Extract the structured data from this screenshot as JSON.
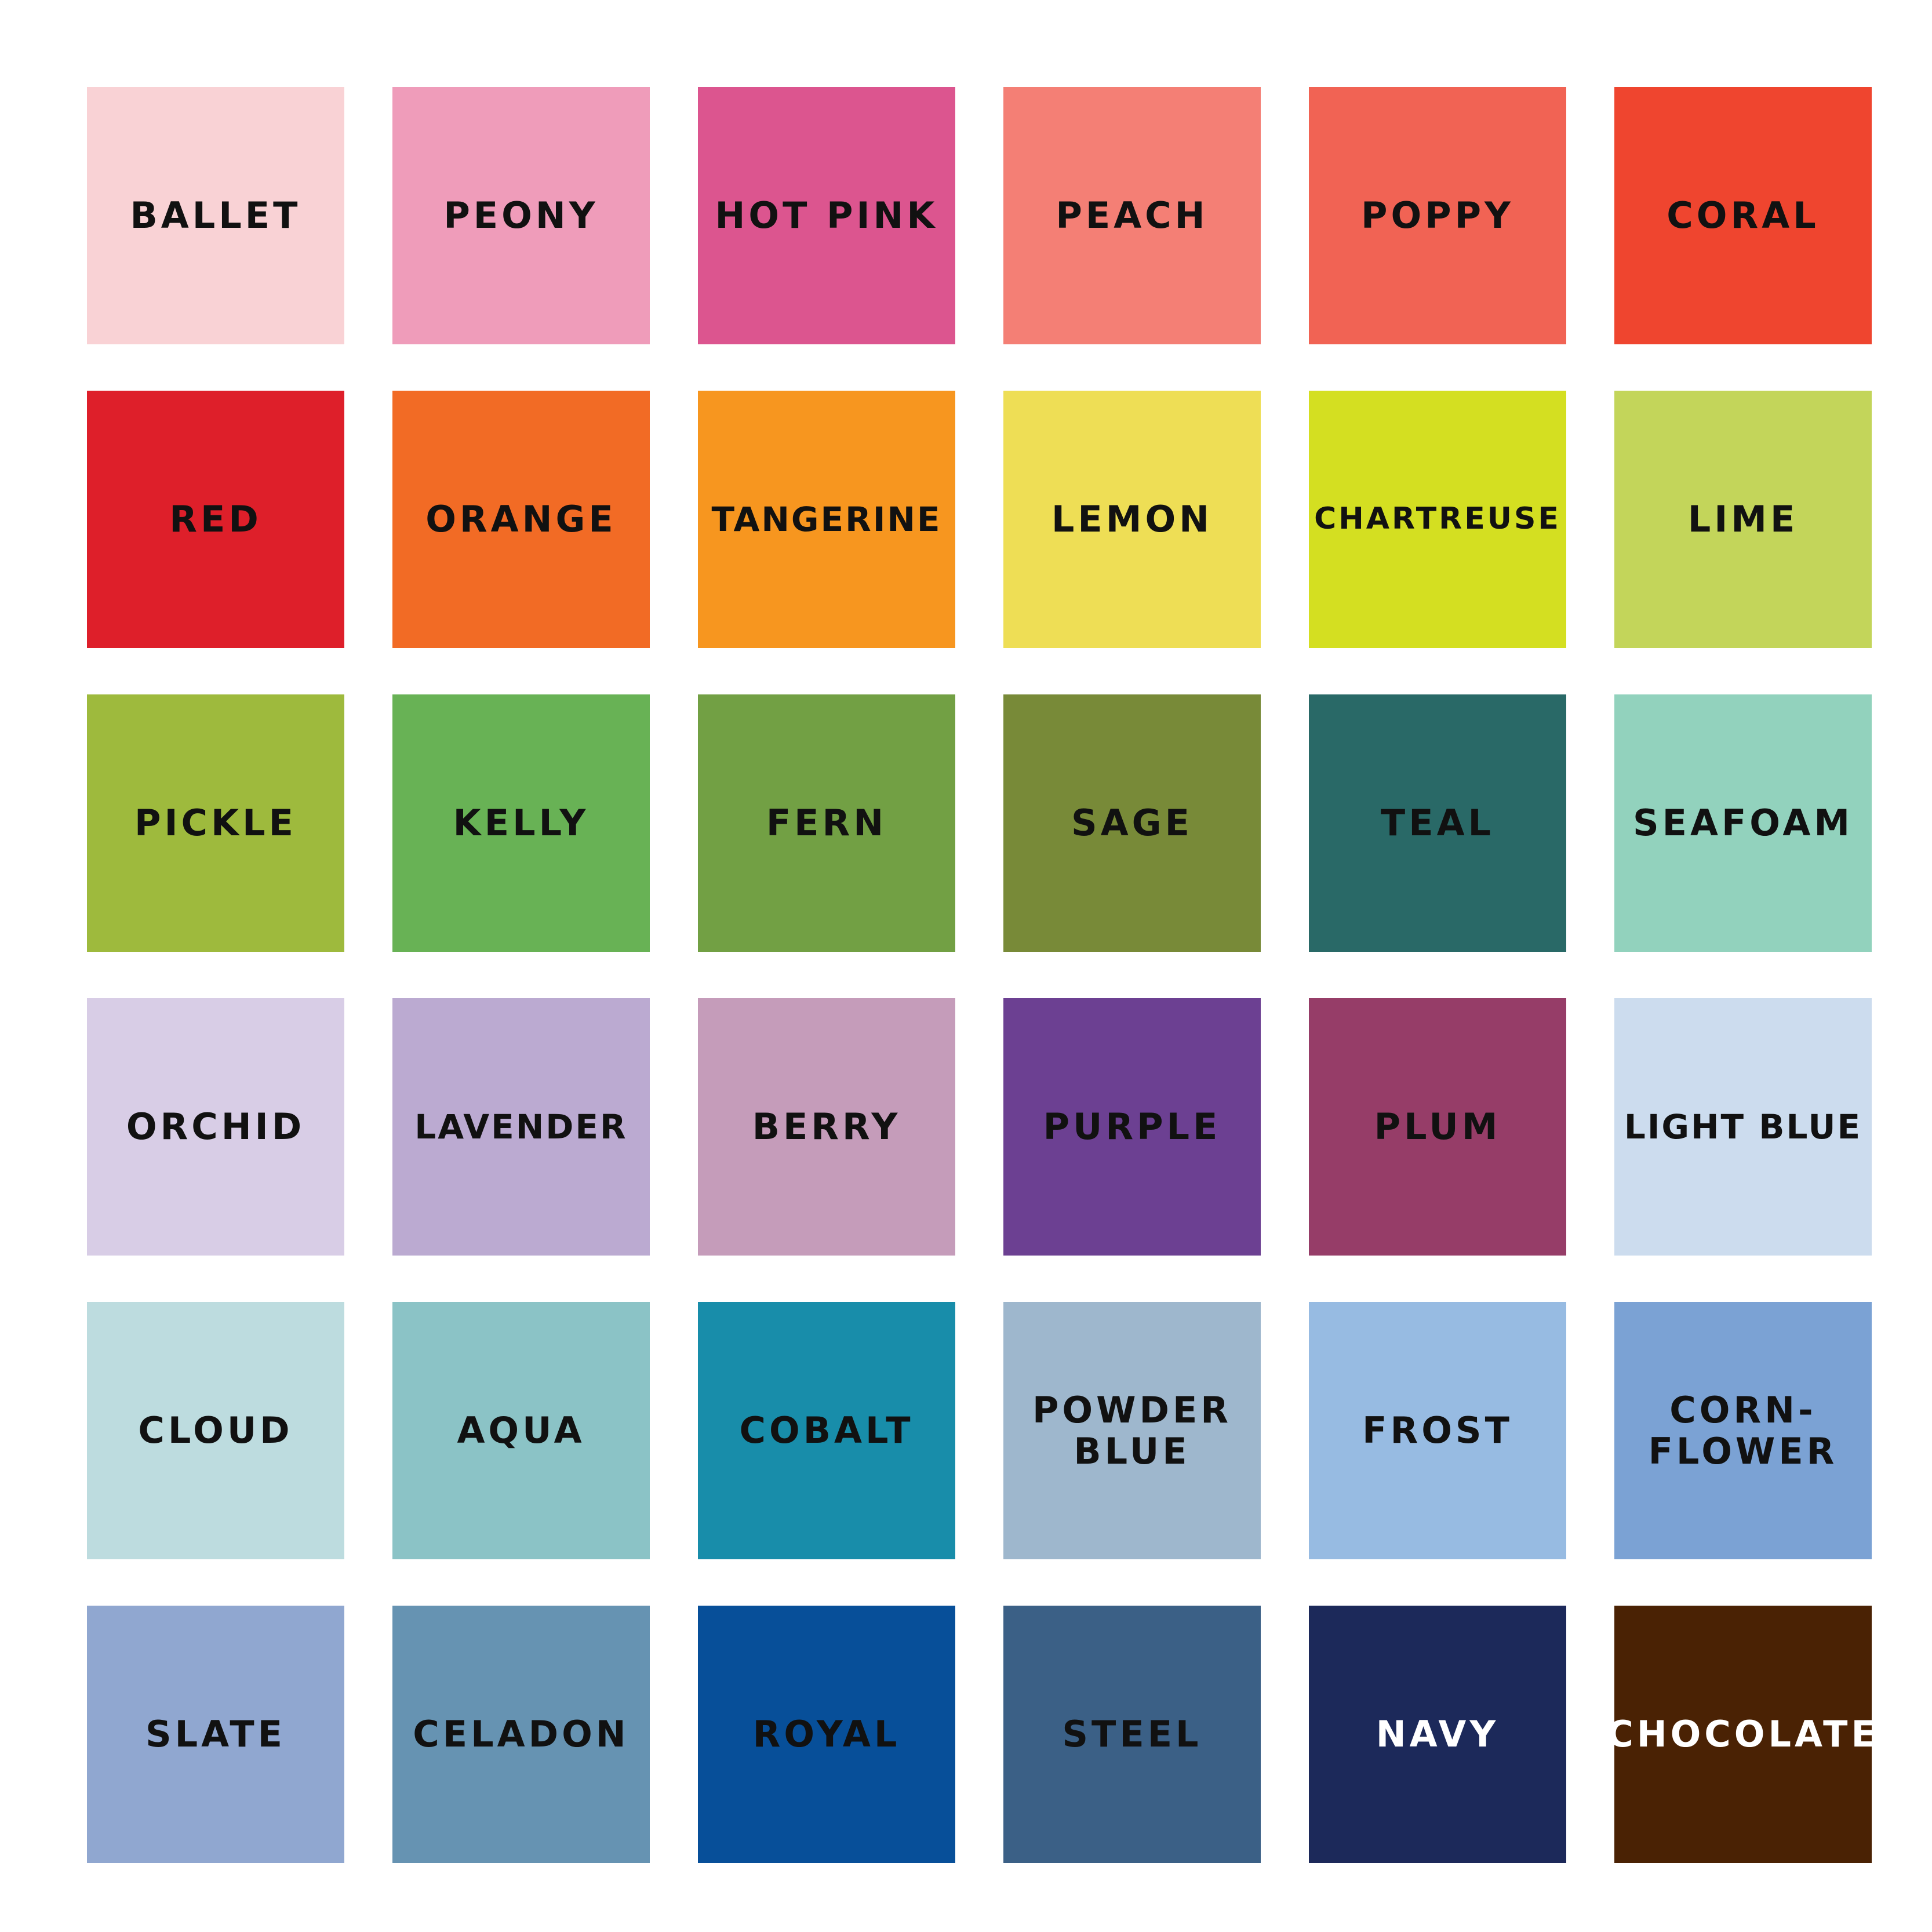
{
  "swatches": [
    {
      "name": "BALLET",
      "color": "#F9D2D5",
      "text": "#111111"
    },
    {
      "name": "PEONY",
      "color": "#EF9CBA",
      "text": "#111111"
    },
    {
      "name": "HOT PINK",
      "color": "#DC558F",
      "text": "#111111"
    },
    {
      "name": "PEACH",
      "color": "#F47F75",
      "text": "#111111"
    },
    {
      "name": "POPPY",
      "color": "#F16354",
      "text": "#111111"
    },
    {
      "name": "CORAL",
      "color": "#EF452F",
      "text": "#111111"
    },
    {
      "name": "RED",
      "color": "#DE1F2A",
      "text": "#111111"
    },
    {
      "name": "ORANGE",
      "color": "#F26B25",
      "text": "#111111"
    },
    {
      "name": "TANGERINE",
      "color": "#F7961F",
      "text": "#111111"
    },
    {
      "name": "LEMON",
      "color": "#EEDE55",
      "text": "#111111"
    },
    {
      "name": "CHARTREUSE",
      "color": "#D4DF21",
      "text": "#111111"
    },
    {
      "name": "LIME",
      "color": "#C3D55A",
      "text": "#111111"
    },
    {
      "name": "PICKLE",
      "color": "#9EBA3D",
      "text": "#111111"
    },
    {
      "name": "KELLY",
      "color": "#68B255",
      "text": "#111111"
    },
    {
      "name": "FERN",
      "color": "#72A044",
      "text": "#111111"
    },
    {
      "name": "SAGE",
      "color": "#788A38",
      "text": "#111111"
    },
    {
      "name": "TEAL",
      "color": "#296967",
      "text": "#111111"
    },
    {
      "name": "SEAFOAM",
      "color": "#92D2BD",
      "text": "#111111"
    },
    {
      "name": "ORCHID",
      "color": "#D8CDE6",
      "text": "#111111"
    },
    {
      "name": "LAVENDER",
      "color": "#BBAAD1",
      "text": "#111111"
    },
    {
      "name": "BERRY",
      "color": "#C59CBA",
      "text": "#111111"
    },
    {
      "name": "PURPLE",
      "color": "#6C4092",
      "text": "#111111"
    },
    {
      "name": "PLUM",
      "color": "#963D68",
      "text": "#111111"
    },
    {
      "name": "LIGHT BLUE",
      "color": "#CCDCEE",
      "text": "#111111"
    },
    {
      "name": "CLOUD",
      "color": "#BDDCDF",
      "text": "#111111"
    },
    {
      "name": "AQUA",
      "color": "#8BC3C6",
      "text": "#111111"
    },
    {
      "name": "COBALT",
      "color": "#188DAA",
      "text": "#111111"
    },
    {
      "name": "POWDER\nBLUE",
      "color": "#9EB7CD",
      "text": "#111111"
    },
    {
      "name": "FROST",
      "color": "#97BBE2",
      "text": "#111111"
    },
    {
      "name": "CORN-\nFLOWER",
      "color": "#7BA2D4",
      "text": "#111111"
    },
    {
      "name": "SLATE",
      "color": "#90A7D0",
      "text": "#111111"
    },
    {
      "name": "CELADON",
      "color": "#6693B2",
      "text": "#111111"
    },
    {
      "name": "ROYAL",
      "color": "#074F99",
      "text": "#111111"
    },
    {
      "name": "STEEL",
      "color": "#3B6086",
      "text": "#111111"
    },
    {
      "name": "NAVY",
      "color": "#1C295A",
      "text": "#FFFFFF"
    },
    {
      "name": "CHOCOLATE",
      "color": "#4A2204",
      "text": "#FFFFFF"
    }
  ]
}
